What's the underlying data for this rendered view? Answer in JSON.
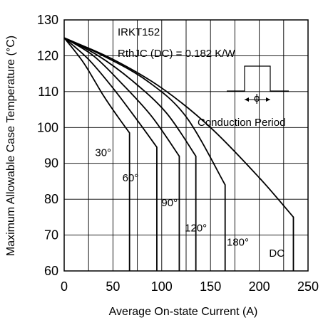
{
  "chart_data": {
    "type": "line",
    "xlabel": "Average On-state Current (A)",
    "ylabel": "Maximum Allowable Case Temperature (°C)",
    "xlim": [
      0,
      250
    ],
    "ylim": [
      60,
      130
    ],
    "x_ticks": [
      "0",
      "50",
      "100",
      "150",
      "200",
      "250"
    ],
    "y_ticks": [
      "60",
      "70",
      "80",
      "90",
      "100",
      "110",
      "120",
      "130"
    ],
    "grid": true,
    "annotations": {
      "device": "IRKT152",
      "rth": "RthJC (DC) = 0.182 K/W",
      "conduction": "Conduction Period",
      "phi": "ϕ"
    },
    "series": [
      {
        "name": "30°",
        "x": [
          0,
          20,
          40,
          55,
          67,
          67
        ],
        "y": [
          125,
          118,
          109,
          103,
          98.5,
          60
        ]
      },
      {
        "name": "60°",
        "x": [
          0,
          25,
          50,
          75,
          95,
          95
        ],
        "y": [
          125,
          119,
          111,
          102,
          94.5,
          60
        ]
      },
      {
        "name": "90°",
        "x": [
          0,
          30,
          60,
          90,
          118,
          118
        ],
        "y": [
          125,
          120,
          112,
          103,
          92,
          60
        ]
      },
      {
        "name": "120°",
        "x": [
          0,
          35,
          70,
          105,
          135,
          135
        ],
        "y": [
          125,
          120,
          113,
          104,
          92,
          60
        ]
      },
      {
        "name": "180°",
        "x": [
          0,
          40,
          85,
          125,
          165,
          165
        ],
        "y": [
          125,
          120,
          113,
          103,
          84,
          60
        ]
      },
      {
        "name": "DC",
        "x": [
          0,
          50,
          100,
          150,
          200,
          235,
          235
        ],
        "y": [
          125,
          119,
          111,
          100,
          86,
          75,
          60
        ]
      }
    ],
    "label_positions_data": [
      {
        "text": "30°",
        "x": 40,
        "y": 92
      },
      {
        "text": "60°",
        "x": 68,
        "y": 85
      },
      {
        "text": "90°",
        "x": 108,
        "y": 78
      },
      {
        "text": "120°",
        "x": 135,
        "y": 71
      },
      {
        "text": "180°",
        "x": 178,
        "y": 67
      },
      {
        "text": "DC",
        "x": 218,
        "y": 64
      }
    ]
  }
}
